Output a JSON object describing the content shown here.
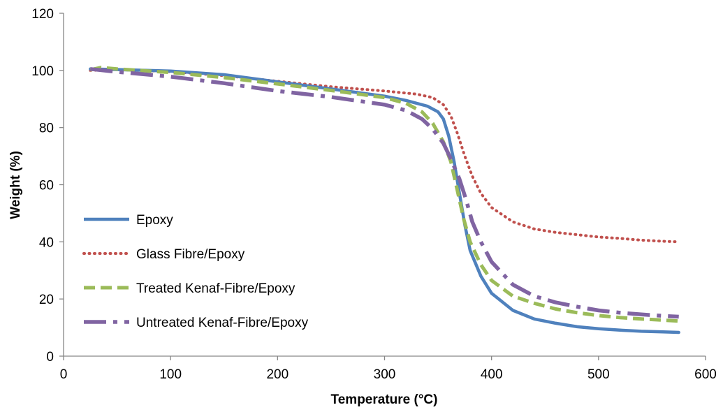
{
  "chart_data": {
    "type": "line",
    "title": "",
    "xlabel": "Temperature (°C)",
    "ylabel": "Weight (%)",
    "xlim": [
      0,
      600
    ],
    "ylim": [
      0,
      120
    ],
    "x_ticks": [
      0,
      100,
      200,
      300,
      400,
      500,
      600
    ],
    "y_ticks": [
      0,
      20,
      40,
      60,
      80,
      100,
      120
    ],
    "x_tick_labels": [
      "0",
      "100",
      "200",
      "300",
      "400",
      "500",
      "600"
    ],
    "y_tick_labels": [
      "0",
      "20",
      "40",
      "60",
      "80",
      "100",
      "120"
    ],
    "grid": false,
    "legend_position": "left",
    "series": [
      {
        "name": "Epoxy",
        "color": "#4f81bd",
        "style": "solid",
        "points": [
          [
            25,
            100.5
          ],
          [
            50,
            100.3
          ],
          [
            100,
            99.8
          ],
          [
            150,
            98.5
          ],
          [
            200,
            96
          ],
          [
            250,
            93.5
          ],
          [
            300,
            91
          ],
          [
            320,
            89.5
          ],
          [
            340,
            87.5
          ],
          [
            350,
            85.5
          ],
          [
            355,
            83
          ],
          [
            360,
            77
          ],
          [
            365,
            68
          ],
          [
            370,
            57
          ],
          [
            375,
            46
          ],
          [
            380,
            37
          ],
          [
            390,
            28
          ],
          [
            400,
            22
          ],
          [
            420,
            16
          ],
          [
            440,
            13
          ],
          [
            460,
            11.5
          ],
          [
            480,
            10.3
          ],
          [
            500,
            9.6
          ],
          [
            520,
            9.1
          ],
          [
            540,
            8.7
          ],
          [
            560,
            8.5
          ],
          [
            575,
            8.3
          ]
        ]
      },
      {
        "name": "Glass Fibre/Epoxy",
        "color": "#c0504d",
        "style": "dotted",
        "points": [
          [
            25,
            100
          ],
          [
            50,
            100.3
          ],
          [
            100,
            99.6
          ],
          [
            150,
            98.2
          ],
          [
            200,
            96.2
          ],
          [
            250,
            94.3
          ],
          [
            300,
            92.8
          ],
          [
            330,
            91.7
          ],
          [
            345,
            90.5
          ],
          [
            355,
            88
          ],
          [
            362,
            84
          ],
          [
            368,
            78
          ],
          [
            375,
            70
          ],
          [
            382,
            63
          ],
          [
            390,
            57
          ],
          [
            400,
            52
          ],
          [
            420,
            47
          ],
          [
            440,
            44.5
          ],
          [
            460,
            43.3
          ],
          [
            480,
            42.5
          ],
          [
            500,
            41.7
          ],
          [
            520,
            41.2
          ],
          [
            540,
            40.6
          ],
          [
            560,
            40.2
          ],
          [
            575,
            40
          ]
        ]
      },
      {
        "name": "Treated Kenaf-Fibre/Epoxy",
        "color": "#9bbb59",
        "style": "dashed",
        "points": [
          [
            25,
            100.2
          ],
          [
            35,
            101
          ],
          [
            50,
            100.5
          ],
          [
            100,
            99.3
          ],
          [
            150,
            97.5
          ],
          [
            200,
            95.3
          ],
          [
            250,
            93
          ],
          [
            300,
            90.5
          ],
          [
            320,
            88.5
          ],
          [
            335,
            85.5
          ],
          [
            345,
            81.5
          ],
          [
            355,
            75
          ],
          [
            362,
            68
          ],
          [
            368,
            58
          ],
          [
            374,
            48
          ],
          [
            380,
            40
          ],
          [
            390,
            32
          ],
          [
            400,
            26.5
          ],
          [
            420,
            21
          ],
          [
            440,
            18.5
          ],
          [
            460,
            16.5
          ],
          [
            480,
            15.2
          ],
          [
            500,
            14.2
          ],
          [
            520,
            13.5
          ],
          [
            540,
            13
          ],
          [
            560,
            12.6
          ],
          [
            575,
            12.3
          ]
        ]
      },
      {
        "name": "Untreated Kenaf-Fibre/Epoxy",
        "color": "#8064a2",
        "style": "dashdot",
        "points": [
          [
            25,
            100.5
          ],
          [
            50,
            99.5
          ],
          [
            100,
            97.8
          ],
          [
            150,
            95.5
          ],
          [
            200,
            92.8
          ],
          [
            250,
            90.7
          ],
          [
            300,
            88
          ],
          [
            320,
            86
          ],
          [
            335,
            83
          ],
          [
            345,
            79.5
          ],
          [
            355,
            74.5
          ],
          [
            362,
            69
          ],
          [
            370,
            62
          ],
          [
            376,
            55
          ],
          [
            382,
            47
          ],
          [
            390,
            40
          ],
          [
            400,
            33
          ],
          [
            420,
            25
          ],
          [
            440,
            21
          ],
          [
            460,
            18.8
          ],
          [
            480,
            17.3
          ],
          [
            500,
            16
          ],
          [
            520,
            15.2
          ],
          [
            540,
            14.6
          ],
          [
            560,
            14.1
          ],
          [
            575,
            13.8
          ]
        ]
      }
    ]
  }
}
